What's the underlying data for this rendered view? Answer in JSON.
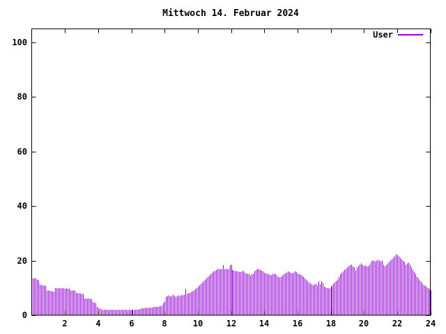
{
  "title": "Mittwoch 14. Februar 2024",
  "legend": {
    "label": "User"
  },
  "colors": {
    "series": "#9400D3",
    "text": "#000000",
    "border": "#000000",
    "background": "#ffffff"
  },
  "chart_data": {
    "type": "bar",
    "title": "Mittwoch 14. Februar 2024",
    "series_name": "User",
    "xlabel": "",
    "ylabel": "",
    "x_unit": "hour-of-day",
    "sample_interval_minutes": 5,
    "first_sample_minutes": 5,
    "xlim": [
      0,
      24
    ],
    "ylim": [
      0,
      104
    ],
    "x_ticks": [
      2,
      4,
      6,
      8,
      10,
      12,
      14,
      16,
      18,
      20,
      22,
      24
    ],
    "y_ticks": [
      0,
      20,
      40,
      60,
      80,
      100
    ],
    "grid": false,
    "legend_position": "top-right",
    "style": "impulses",
    "values": [
      13.5,
      13.5,
      13.5,
      13.0,
      12.9,
      11.2,
      11.0,
      11.0,
      10.8,
      10.8,
      9.1,
      9.0,
      8.9,
      8.8,
      8.7,
      8.6,
      9.9,
      9.9,
      9.8,
      9.9,
      9.8,
      9.9,
      9.8,
      9.7,
      9.8,
      9.7,
      9.7,
      9.1,
      9.1,
      9.0,
      9.0,
      8.2,
      8.1,
      8.0,
      7.9,
      7.8,
      7.8,
      6.1,
      6.1,
      6.0,
      6.1,
      6.0,
      5.9,
      4.8,
      4.6,
      4.4,
      3.1,
      2.5,
      2.5,
      2.0,
      1.9,
      2.0,
      1.9,
      2.0,
      1.9,
      1.9,
      2.0,
      1.9,
      2.0,
      1.9,
      1.9,
      2.0,
      1.9,
      1.9,
      2.0,
      1.9,
      2.0,
      1.9,
      1.9,
      2.0,
      1.9,
      2.0,
      2.0,
      1.9,
      2.0,
      2.0,
      2.1,
      2.2,
      2.4,
      2.5,
      2.6,
      2.7,
      2.7,
      2.7,
      2.7,
      2.8,
      2.8,
      2.9,
      3.0,
      3.0,
      3.1,
      3.2,
      3.3,
      3.4,
      4.5,
      5.0,
      6.8,
      7.0,
      7.2,
      6.9,
      7.0,
      7.5,
      7.0,
      6.8,
      7.0,
      7.2,
      7.0,
      7.4,
      7.3,
      7.5,
      9.5,
      7.8,
      8.0,
      8.2,
      8.5,
      8.8,
      9.0,
      9.5,
      10.0,
      10.5,
      11.0,
      11.5,
      12.0,
      12.5,
      13.0,
      13.5,
      14.0,
      14.5,
      15.0,
      15.5,
      16.0,
      16.2,
      16.5,
      16.8,
      17.0,
      16.8,
      17.0,
      18.4,
      17.0,
      17.0,
      16.8,
      17.0,
      18.3,
      18.5,
      16.5,
      16.3,
      16.2,
      16.0,
      16.0,
      15.8,
      15.8,
      16.0,
      16.2,
      15.5,
      15.3,
      15.2,
      15.0,
      14.5,
      15.0,
      15.2,
      16.0,
      16.5,
      17.0,
      16.8,
      16.5,
      16.3,
      16.0,
      15.5,
      15.3,
      15.2,
      15.0,
      14.8,
      14.6,
      15.0,
      15.2,
      15.0,
      14.5,
      14.0,
      13.8,
      14.2,
      14.5,
      15.0,
      15.3,
      15.5,
      16.0,
      15.8,
      15.5,
      15.3,
      15.5,
      16.0,
      15.8,
      15.2,
      15.0,
      14.8,
      14.5,
      14.0,
      13.5,
      13.0,
      12.5,
      12.0,
      11.6,
      11.3,
      11.0,
      11.2,
      11.5,
      10.8,
      12.4,
      11.2,
      12.5,
      11.8,
      10.5,
      10.2,
      10.0,
      9.8,
      10.0,
      10.5,
      11.0,
      11.5,
      12.0,
      12.5,
      13.0,
      14.0,
      15.0,
      15.5,
      16.0,
      16.5,
      17.0,
      17.5,
      18.0,
      18.3,
      18.5,
      18.0,
      17.5,
      16.3,
      17.5,
      18.0,
      18.5,
      19.0,
      18.5,
      18.0,
      18.2,
      17.8,
      18.0,
      18.5,
      19.5,
      20.0,
      20.0,
      19.8,
      20.0,
      20.2,
      20.0,
      19.8,
      20.0,
      18.5,
      18.0,
      18.3,
      19.0,
      19.5,
      20.0,
      20.5,
      21.0,
      21.5,
      22.3,
      22.0,
      21.5,
      21.0,
      20.5,
      20.0,
      19.5,
      18.5,
      19.0,
      19.2,
      18.5,
      17.5,
      16.5,
      15.8,
      15.0,
      14.0,
      13.5,
      12.8,
      12.2,
      11.5,
      11.0,
      10.7,
      10.3,
      10.0,
      9.5,
      9.0
    ]
  }
}
